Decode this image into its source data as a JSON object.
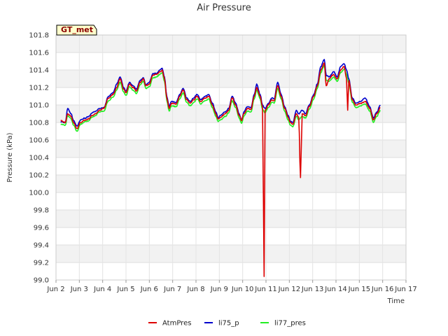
{
  "chart_data": {
    "type": "line",
    "title": "Air Pressure",
    "xlabel": "Time",
    "ylabel": "Pressure (kPa)",
    "site_label": "GT_met",
    "ylim": [
      99.0,
      101.8
    ],
    "xlim": [
      2,
      17
    ],
    "y_ticks": [
      99.0,
      99.2,
      99.4,
      99.6,
      99.8,
      100.0,
      100.2,
      100.4,
      100.6,
      100.8,
      101.0,
      101.2,
      101.4,
      101.6,
      101.8
    ],
    "y_tick_labels": [
      "99.0",
      "99.2",
      "99.4",
      "99.6",
      "99.8",
      "100.0",
      "100.2",
      "100.4",
      "100.6",
      "100.8",
      "101.0",
      "101.2",
      "101.4",
      "101.6",
      "101.8"
    ],
    "x_ticks": [
      2,
      3,
      4,
      5,
      6,
      7,
      8,
      9,
      10,
      11,
      12,
      13,
      14,
      15,
      16,
      17
    ],
    "x_tick_labels": [
      "Jun 2",
      "Jun 3",
      "Jun 4",
      "Jun 5",
      "Jun 6",
      "Jun 7",
      "Jun 8",
      "Jun 9",
      "Jun 10",
      "Jun 11",
      "Jun 12",
      "Jun 13",
      "Jun 14",
      "Jun 15",
      "Jun 16",
      "Jun 17"
    ],
    "grid": true,
    "legend_position": "bottom",
    "series": [
      {
        "name": "AtmPres",
        "color": "#dd0000",
        "offset": 0.0,
        "values": [
          [
            2.2,
            100.82
          ],
          [
            2.4,
            100.8
          ],
          [
            2.5,
            100.9
          ],
          [
            2.65,
            100.87
          ],
          [
            2.75,
            100.8
          ],
          [
            2.9,
            100.73
          ],
          [
            3.05,
            100.8
          ],
          [
            3.25,
            100.83
          ],
          [
            3.4,
            100.84
          ],
          [
            3.55,
            100.88
          ],
          [
            3.7,
            100.9
          ],
          [
            3.85,
            100.94
          ],
          [
            4.05,
            100.96
          ],
          [
            4.25,
            101.08
          ],
          [
            4.45,
            101.12
          ],
          [
            4.6,
            101.2
          ],
          [
            4.75,
            101.3
          ],
          [
            4.9,
            101.18
          ],
          [
            5.0,
            101.14
          ],
          [
            5.15,
            101.24
          ],
          [
            5.3,
            101.2
          ],
          [
            5.45,
            101.16
          ],
          [
            5.6,
            101.26
          ],
          [
            5.75,
            101.3
          ],
          [
            5.85,
            101.22
          ],
          [
            6.0,
            101.24
          ],
          [
            6.15,
            101.34
          ],
          [
            6.3,
            101.35
          ],
          [
            6.45,
            101.38
          ],
          [
            6.55,
            101.4
          ],
          [
            6.65,
            101.3
          ],
          [
            6.75,
            101.08
          ],
          [
            6.85,
            100.96
          ],
          [
            6.95,
            101.02
          ],
          [
            7.15,
            101.01
          ],
          [
            7.3,
            101.1
          ],
          [
            7.45,
            101.17
          ],
          [
            7.6,
            101.06
          ],
          [
            7.75,
            101.02
          ],
          [
            7.9,
            101.06
          ],
          [
            8.05,
            101.1
          ],
          [
            8.2,
            101.04
          ],
          [
            8.4,
            101.08
          ],
          [
            8.55,
            101.1
          ],
          [
            8.7,
            101.0
          ],
          [
            8.85,
            100.9
          ],
          [
            8.95,
            100.84
          ],
          [
            9.05,
            100.86
          ],
          [
            9.25,
            100.9
          ],
          [
            9.4,
            100.94
          ],
          [
            9.55,
            101.08
          ],
          [
            9.7,
            101.0
          ],
          [
            9.85,
            100.88
          ],
          [
            9.95,
            100.82
          ],
          [
            10.05,
            100.9
          ],
          [
            10.2,
            100.96
          ],
          [
            10.35,
            100.95
          ],
          [
            10.5,
            101.1
          ],
          [
            10.6,
            101.2
          ],
          [
            10.75,
            101.1
          ],
          [
            10.85,
            100.98
          ],
          [
            10.92,
            99.04
          ],
          [
            10.96,
            100.94
          ],
          [
            11.1,
            101.0
          ],
          [
            11.25,
            101.06
          ],
          [
            11.35,
            101.05
          ],
          [
            11.5,
            101.22
          ],
          [
            11.65,
            101.1
          ],
          [
            11.8,
            100.96
          ],
          [
            11.95,
            100.86
          ],
          [
            12.05,
            100.8
          ],
          [
            12.15,
            100.78
          ],
          [
            12.3,
            100.9
          ],
          [
            12.4,
            100.86
          ],
          [
            12.48,
            100.17
          ],
          [
            12.55,
            100.9
          ],
          [
            12.7,
            100.88
          ],
          [
            12.85,
            100.98
          ],
          [
            13.05,
            101.1
          ],
          [
            13.2,
            101.22
          ],
          [
            13.35,
            101.4
          ],
          [
            13.5,
            101.48
          ],
          [
            13.58,
            101.22
          ],
          [
            13.7,
            101.3
          ],
          [
            13.9,
            101.35
          ],
          [
            14.05,
            101.3
          ],
          [
            14.2,
            101.4
          ],
          [
            14.35,
            101.44
          ],
          [
            14.45,
            101.3
          ],
          [
            14.5,
            100.94
          ],
          [
            14.55,
            101.28
          ],
          [
            14.7,
            101.06
          ],
          [
            14.85,
            101.0
          ],
          [
            15.05,
            101.02
          ],
          [
            15.25,
            101.04
          ],
          [
            15.45,
            100.96
          ],
          [
            15.6,
            100.83
          ],
          [
            15.75,
            100.9
          ],
          [
            15.9,
            100.97
          ]
        ]
      },
      {
        "name": "li75_p",
        "color": "#0000cc",
        "offset": 0.02,
        "values": [
          [
            2.2,
            100.81
          ],
          [
            2.4,
            100.8
          ],
          [
            2.5,
            100.96
          ],
          [
            2.65,
            100.9
          ],
          [
            2.75,
            100.82
          ],
          [
            2.9,
            100.76
          ],
          [
            3.05,
            100.83
          ],
          [
            3.25,
            100.85
          ],
          [
            3.4,
            100.87
          ],
          [
            3.55,
            100.91
          ],
          [
            3.7,
            100.93
          ],
          [
            3.85,
            100.96
          ],
          [
            4.05,
            100.97
          ],
          [
            4.25,
            101.1
          ],
          [
            4.45,
            101.14
          ],
          [
            4.6,
            101.24
          ],
          [
            4.75,
            101.32
          ],
          [
            4.9,
            101.2
          ],
          [
            5.0,
            101.16
          ],
          [
            5.15,
            101.26
          ],
          [
            5.3,
            101.22
          ],
          [
            5.45,
            101.18
          ],
          [
            5.6,
            101.28
          ],
          [
            5.75,
            101.31
          ],
          [
            5.85,
            101.23
          ],
          [
            6.0,
            101.26
          ],
          [
            6.15,
            101.36
          ],
          [
            6.3,
            101.36
          ],
          [
            6.45,
            101.4
          ],
          [
            6.55,
            101.42
          ],
          [
            6.65,
            101.32
          ],
          [
            6.75,
            101.1
          ],
          [
            6.85,
            100.98
          ],
          [
            6.95,
            101.04
          ],
          [
            7.15,
            101.03
          ],
          [
            7.3,
            101.12
          ],
          [
            7.45,
            101.19
          ],
          [
            7.6,
            101.08
          ],
          [
            7.75,
            101.04
          ],
          [
            7.9,
            101.08
          ],
          [
            8.05,
            101.12
          ],
          [
            8.2,
            101.06
          ],
          [
            8.4,
            101.1
          ],
          [
            8.55,
            101.12
          ],
          [
            8.7,
            101.02
          ],
          [
            8.85,
            100.92
          ],
          [
            8.95,
            100.85
          ],
          [
            9.05,
            100.88
          ],
          [
            9.25,
            100.92
          ],
          [
            9.4,
            100.96
          ],
          [
            9.55,
            101.1
          ],
          [
            9.7,
            101.02
          ],
          [
            9.85,
            100.9
          ],
          [
            9.95,
            100.83
          ],
          [
            10.05,
            100.92
          ],
          [
            10.2,
            100.98
          ],
          [
            10.35,
            100.97
          ],
          [
            10.5,
            101.12
          ],
          [
            10.6,
            101.24
          ],
          [
            10.75,
            101.12
          ],
          [
            10.85,
            101.0
          ],
          [
            10.96,
            100.96
          ],
          [
            11.1,
            101.02
          ],
          [
            11.25,
            101.08
          ],
          [
            11.35,
            101.07
          ],
          [
            11.5,
            101.26
          ],
          [
            11.65,
            101.12
          ],
          [
            11.8,
            100.98
          ],
          [
            11.95,
            100.88
          ],
          [
            12.05,
            100.81
          ],
          [
            12.15,
            100.8
          ],
          [
            12.3,
            100.94
          ],
          [
            12.4,
            100.9
          ],
          [
            12.55,
            100.94
          ],
          [
            12.7,
            100.9
          ],
          [
            12.85,
            101.0
          ],
          [
            13.05,
            101.12
          ],
          [
            13.2,
            101.24
          ],
          [
            13.35,
            101.44
          ],
          [
            13.5,
            101.52
          ],
          [
            13.58,
            101.34
          ],
          [
            13.7,
            101.32
          ],
          [
            13.9,
            101.38
          ],
          [
            14.05,
            101.32
          ],
          [
            14.2,
            101.44
          ],
          [
            14.35,
            101.47
          ],
          [
            14.45,
            101.4
          ],
          [
            14.55,
            101.3
          ],
          [
            14.7,
            101.08
          ],
          [
            14.85,
            101.02
          ],
          [
            15.05,
            101.04
          ],
          [
            15.25,
            101.08
          ],
          [
            15.45,
            100.98
          ],
          [
            15.6,
            100.85
          ],
          [
            15.75,
            100.92
          ],
          [
            15.9,
            101.0
          ]
        ]
      },
      {
        "name": "li77_pres",
        "color": "#22ee22",
        "offset": -0.02,
        "values": [
          [
            2.2,
            100.78
          ],
          [
            2.4,
            100.77
          ],
          [
            2.5,
            100.88
          ],
          [
            2.65,
            100.84
          ],
          [
            2.75,
            100.77
          ],
          [
            2.9,
            100.7
          ],
          [
            3.05,
            100.78
          ],
          [
            3.25,
            100.81
          ],
          [
            3.4,
            100.82
          ],
          [
            3.55,
            100.86
          ],
          [
            3.7,
            100.88
          ],
          [
            3.85,
            100.92
          ],
          [
            4.05,
            100.93
          ],
          [
            4.25,
            101.05
          ],
          [
            4.45,
            101.09
          ],
          [
            4.6,
            101.17
          ],
          [
            4.75,
            101.26
          ],
          [
            4.9,
            101.15
          ],
          [
            5.0,
            101.11
          ],
          [
            5.15,
            101.21
          ],
          [
            5.3,
            101.17
          ],
          [
            5.45,
            101.13
          ],
          [
            5.6,
            101.23
          ],
          [
            5.75,
            101.27
          ],
          [
            5.85,
            101.19
          ],
          [
            6.0,
            101.21
          ],
          [
            6.15,
            101.31
          ],
          [
            6.3,
            101.32
          ],
          [
            6.45,
            101.35
          ],
          [
            6.55,
            101.37
          ],
          [
            6.65,
            101.27
          ],
          [
            6.75,
            101.05
          ],
          [
            6.85,
            100.93
          ],
          [
            6.95,
            100.99
          ],
          [
            7.15,
            100.98
          ],
          [
            7.3,
            101.07
          ],
          [
            7.45,
            101.14
          ],
          [
            7.6,
            101.03
          ],
          [
            7.75,
            100.99
          ],
          [
            7.9,
            101.03
          ],
          [
            8.05,
            101.07
          ],
          [
            8.2,
            101.01
          ],
          [
            8.4,
            101.05
          ],
          [
            8.55,
            101.07
          ],
          [
            8.7,
            100.97
          ],
          [
            8.85,
            100.87
          ],
          [
            8.95,
            100.81
          ],
          [
            9.05,
            100.83
          ],
          [
            9.25,
            100.87
          ],
          [
            9.4,
            100.91
          ],
          [
            9.55,
            101.05
          ],
          [
            9.7,
            100.97
          ],
          [
            9.85,
            100.85
          ],
          [
            9.95,
            100.79
          ],
          [
            10.05,
            100.87
          ],
          [
            10.2,
            100.93
          ],
          [
            10.35,
            100.92
          ],
          [
            10.5,
            101.07
          ],
          [
            10.6,
            101.17
          ],
          [
            10.75,
            101.07
          ],
          [
            10.85,
            100.95
          ],
          [
            10.96,
            100.91
          ],
          [
            11.1,
            100.97
          ],
          [
            11.25,
            101.03
          ],
          [
            11.35,
            101.02
          ],
          [
            11.5,
            101.19
          ],
          [
            11.65,
            101.07
          ],
          [
            11.8,
            100.93
          ],
          [
            11.95,
            100.83
          ],
          [
            12.05,
            100.77
          ],
          [
            12.15,
            100.75
          ],
          [
            12.3,
            100.87
          ],
          [
            12.4,
            100.83
          ],
          [
            12.55,
            100.87
          ],
          [
            12.7,
            100.85
          ],
          [
            12.85,
            100.95
          ],
          [
            13.05,
            101.07
          ],
          [
            13.2,
            101.19
          ],
          [
            13.35,
            101.37
          ],
          [
            13.5,
            101.45
          ],
          [
            13.58,
            101.28
          ],
          [
            13.7,
            101.27
          ],
          [
            13.9,
            101.32
          ],
          [
            14.05,
            101.27
          ],
          [
            14.2,
            101.37
          ],
          [
            14.35,
            101.41
          ],
          [
            14.45,
            101.35
          ],
          [
            14.55,
            101.25
          ],
          [
            14.7,
            101.03
          ],
          [
            14.85,
            100.97
          ],
          [
            15.05,
            100.99
          ],
          [
            15.25,
            101.01
          ],
          [
            15.45,
            100.93
          ],
          [
            15.6,
            100.8
          ],
          [
            15.75,
            100.87
          ],
          [
            15.9,
            100.94
          ]
        ]
      }
    ]
  }
}
